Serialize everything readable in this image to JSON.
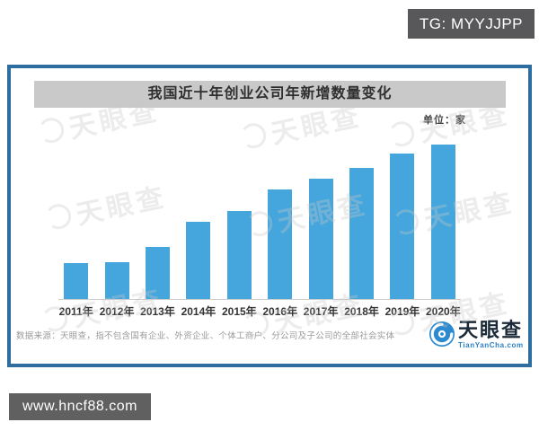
{
  "overlays": {
    "top_badge": "TG: MYYJJPP",
    "bottom_badge": "www.hncf88.com"
  },
  "panel": {
    "title": "我国近十年创业公司年新增数量变化",
    "unit_label": "单位：家",
    "source_note": "数据来源：天眼查，指不包含国有企业、外资企业、个体工商户、分公司及子公司的全部社会实体",
    "watermark_text": "天眼查",
    "logo": {
      "name": "天眼查",
      "domain": "TianYanCha.com"
    }
  },
  "colors": {
    "bar": "#45a6dd",
    "panel_border": "#2e6da0",
    "title_banner_bg": "#c9c9c9",
    "badge_bg": "#58585a",
    "axis_line": "#cccccc",
    "source_text": "#9b9b9b",
    "logo_navy": "#1b2a38",
    "logo_blue": "#2a7fc5"
  },
  "chart_data": {
    "type": "bar",
    "title": "我国近十年创业公司年新增数量变化",
    "unit": "家",
    "categories": [
      "2011年",
      "2012年",
      "2013年",
      "2014年",
      "2015年",
      "2016年",
      "2017年",
      "2018年",
      "2019年",
      "2020年"
    ],
    "values_pct_of_max": [
      23,
      24,
      34,
      50,
      57,
      71,
      78,
      85,
      94,
      100
    ],
    "xlabel": "",
    "ylabel": "",
    "y_axis_shown": false,
    "value_labels_shown": false,
    "grid": false,
    "legend": "none",
    "bar_color": "#45a6dd"
  }
}
